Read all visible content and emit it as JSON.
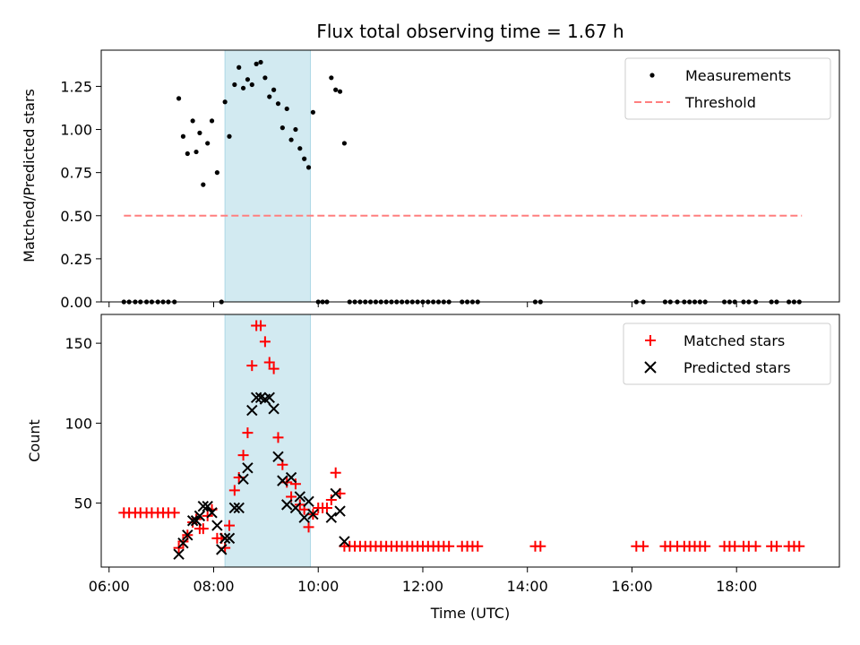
{
  "chart_data": [
    {
      "type": "scatter",
      "title": "Flux total observing time = 1.67 h",
      "xlabel": "",
      "ylabel": "Matched/Predicted stars",
      "ylim": [
        0,
        1.46
      ],
      "xlim": [
        "05:51",
        "19:58"
      ],
      "yticks": [
        "0.00",
        "0.25",
        "0.50",
        "0.75",
        "1.00",
        "1.25"
      ],
      "grid": false,
      "legend_position": "top-right",
      "shaded_span": [
        "08:13",
        "09:51"
      ],
      "series": [
        {
          "name": "Measurements",
          "kind": "points",
          "color": "#000000",
          "points": [
            [
              "06:17",
              0
            ],
            [
              "06:23",
              0
            ],
            [
              "06:30",
              0
            ],
            [
              "06:36",
              0
            ],
            [
              "06:43",
              0
            ],
            [
              "06:49",
              0
            ],
            [
              "06:56",
              0
            ],
            [
              "07:02",
              0
            ],
            [
              "07:08",
              0
            ],
            [
              "07:15",
              0
            ],
            [
              "07:20",
              1.18
            ],
            [
              "07:25",
              0.96
            ],
            [
              "07:30",
              0.86
            ],
            [
              "07:36",
              1.05
            ],
            [
              "07:40",
              0.87
            ],
            [
              "07:44",
              0.98
            ],
            [
              "07:48",
              0.68
            ],
            [
              "07:53",
              0.92
            ],
            [
              "07:58",
              1.05
            ],
            [
              "08:04",
              0.75
            ],
            [
              "08:09",
              0.0
            ],
            [
              "08:13",
              1.16
            ],
            [
              "08:18",
              0.96
            ],
            [
              "08:24",
              1.26
            ],
            [
              "08:29",
              1.36
            ],
            [
              "08:34",
              1.24
            ],
            [
              "08:39",
              1.29
            ],
            [
              "08:44",
              1.26
            ],
            [
              "08:49",
              1.38
            ],
            [
              "08:54",
              1.39
            ],
            [
              "08:59",
              1.3
            ],
            [
              "09:04",
              1.19
            ],
            [
              "09:09",
              1.23
            ],
            [
              "09:14",
              1.15
            ],
            [
              "09:19",
              1.01
            ],
            [
              "09:24",
              1.12
            ],
            [
              "09:29",
              0.94
            ],
            [
              "09:34",
              1.0
            ],
            [
              "09:39",
              0.89
            ],
            [
              "09:44",
              0.83
            ],
            [
              "09:49",
              0.78
            ],
            [
              "09:54",
              1.1
            ],
            [
              "10:00",
              0
            ],
            [
              "10:05",
              0
            ],
            [
              "10:10",
              0
            ],
            [
              "10:15",
              1.3
            ],
            [
              "10:20",
              1.23
            ],
            [
              "10:25",
              1.22
            ],
            [
              "10:30",
              0.92
            ],
            [
              "10:36",
              0
            ],
            [
              "10:42",
              0
            ],
            [
              "10:48",
              0
            ],
            [
              "10:54",
              0
            ],
            [
              "11:00",
              0
            ],
            [
              "11:06",
              0
            ],
            [
              "11:12",
              0
            ],
            [
              "11:18",
              0
            ],
            [
              "11:24",
              0
            ],
            [
              "11:30",
              0
            ],
            [
              "11:36",
              0
            ],
            [
              "11:42",
              0
            ],
            [
              "11:48",
              0
            ],
            [
              "11:54",
              0
            ],
            [
              "12:00",
              0
            ],
            [
              "12:06",
              0
            ],
            [
              "12:12",
              0
            ],
            [
              "12:18",
              0
            ],
            [
              "12:24",
              0
            ],
            [
              "12:30",
              0
            ],
            [
              "12:45",
              0
            ],
            [
              "12:51",
              0
            ],
            [
              "12:57",
              0
            ],
            [
              "13:03",
              0
            ],
            [
              "14:09",
              0
            ],
            [
              "14:15",
              0
            ],
            [
              "16:05",
              0
            ],
            [
              "16:13",
              0
            ],
            [
              "16:38",
              0
            ],
            [
              "16:44",
              0
            ],
            [
              "16:52",
              0
            ],
            [
              "17:00",
              0
            ],
            [
              "17:06",
              0
            ],
            [
              "17:12",
              0
            ],
            [
              "17:18",
              0
            ],
            [
              "17:24",
              0
            ],
            [
              "17:46",
              0
            ],
            [
              "17:52",
              0
            ],
            [
              "17:58",
              0
            ],
            [
              "18:08",
              0
            ],
            [
              "18:14",
              0
            ],
            [
              "18:22",
              0
            ],
            [
              "18:40",
              0
            ],
            [
              "18:46",
              0
            ],
            [
              "19:00",
              0
            ],
            [
              "19:06",
              0
            ],
            [
              "19:12",
              0
            ]
          ]
        },
        {
          "name": "Threshold",
          "kind": "dashed-line",
          "color": "#ff7f7f",
          "points": [
            [
              "06:17",
              0.5
            ],
            [
              "19:15",
              0.5
            ]
          ]
        }
      ]
    },
    {
      "type": "scatter",
      "title": "",
      "xlabel": "Time (UTC)",
      "ylabel": "Count",
      "ylim": [
        10,
        168
      ],
      "xlim": [
        "05:51",
        "19:58"
      ],
      "yticks": [
        "50",
        "100",
        "150"
      ],
      "xticks": [
        "06:00",
        "08:00",
        "10:00",
        "12:00",
        "14:00",
        "16:00",
        "18:00"
      ],
      "grid": false,
      "legend_position": "top-right",
      "shaded_span": [
        "08:13",
        "09:51"
      ],
      "series": [
        {
          "name": "Matched stars",
          "marker": "+",
          "color": "#ff0000",
          "points": [
            [
              "06:17",
              44
            ],
            [
              "06:23",
              44
            ],
            [
              "06:30",
              44
            ],
            [
              "06:36",
              44
            ],
            [
              "06:43",
              44
            ],
            [
              "06:49",
              44
            ],
            [
              "06:56",
              44
            ],
            [
              "07:02",
              44
            ],
            [
              "07:08",
              44
            ],
            [
              "07:15",
              44
            ],
            [
              "07:20",
              22
            ],
            [
              "07:25",
              26
            ],
            [
              "07:30",
              30
            ],
            [
              "07:36",
              38
            ],
            [
              "07:40",
              40
            ],
            [
              "07:44",
              34
            ],
            [
              "07:48",
              34
            ],
            [
              "07:53",
              42
            ],
            [
              "07:58",
              46
            ],
            [
              "08:04",
              28
            ],
            [
              "08:09",
              28
            ],
            [
              "08:13",
              22
            ],
            [
              "08:18",
              36
            ],
            [
              "08:24",
              58
            ],
            [
              "08:29",
              66
            ],
            [
              "08:34",
              80
            ],
            [
              "08:39",
              94
            ],
            [
              "08:44",
              136
            ],
            [
              "08:49",
              161
            ],
            [
              "08:54",
              161
            ],
            [
              "08:59",
              151
            ],
            [
              "09:04",
              138
            ],
            [
              "09:09",
              134
            ],
            [
              "09:14",
              91
            ],
            [
              "09:19",
              74
            ],
            [
              "09:24",
              63
            ],
            [
              "09:29",
              54
            ],
            [
              "09:34",
              62
            ],
            [
              "09:39",
              49
            ],
            [
              "09:44",
              46
            ],
            [
              "09:49",
              35
            ],
            [
              "09:54",
              43
            ],
            [
              "10:00",
              47
            ],
            [
              "10:05",
              47
            ],
            [
              "10:10",
              47
            ],
            [
              "10:15",
              52
            ],
            [
              "10:20",
              69
            ],
            [
              "10:25",
              56
            ],
            [
              "10:30",
              23
            ],
            [
              "10:36",
              23
            ],
            [
              "10:42",
              23
            ],
            [
              "10:48",
              23
            ],
            [
              "10:54",
              23
            ],
            [
              "11:00",
              23
            ],
            [
              "11:06",
              23
            ],
            [
              "11:12",
              23
            ],
            [
              "11:18",
              23
            ],
            [
              "11:24",
              23
            ],
            [
              "11:30",
              23
            ],
            [
              "11:36",
              23
            ],
            [
              "11:42",
              23
            ],
            [
              "11:48",
              23
            ],
            [
              "11:54",
              23
            ],
            [
              "12:00",
              23
            ],
            [
              "12:06",
              23
            ],
            [
              "12:12",
              23
            ],
            [
              "12:18",
              23
            ],
            [
              "12:24",
              23
            ],
            [
              "12:30",
              23
            ],
            [
              "12:45",
              23
            ],
            [
              "12:51",
              23
            ],
            [
              "12:57",
              23
            ],
            [
              "13:03",
              23
            ],
            [
              "14:09",
              23
            ],
            [
              "14:15",
              23
            ],
            [
              "16:05",
              23
            ],
            [
              "16:13",
              23
            ],
            [
              "16:38",
              23
            ],
            [
              "16:44",
              23
            ],
            [
              "16:52",
              23
            ],
            [
              "17:00",
              23
            ],
            [
              "17:06",
              23
            ],
            [
              "17:12",
              23
            ],
            [
              "17:18",
              23
            ],
            [
              "17:24",
              23
            ],
            [
              "17:46",
              23
            ],
            [
              "17:52",
              23
            ],
            [
              "17:58",
              23
            ],
            [
              "18:08",
              23
            ],
            [
              "18:14",
              23
            ],
            [
              "18:22",
              23
            ],
            [
              "18:40",
              23
            ],
            [
              "18:46",
              23
            ],
            [
              "19:00",
              23
            ],
            [
              "19:06",
              23
            ],
            [
              "19:12",
              23
            ]
          ]
        },
        {
          "name": "Predicted stars",
          "marker": "x",
          "color": "#000000",
          "points": [
            [
              "07:20",
              18
            ],
            [
              "07:25",
              25
            ],
            [
              "07:30",
              30
            ],
            [
              "07:36",
              39
            ],
            [
              "07:40",
              39
            ],
            [
              "07:44",
              42
            ],
            [
              "07:48",
              48
            ],
            [
              "07:53",
              48
            ],
            [
              "07:58",
              44
            ],
            [
              "08:04",
              36
            ],
            [
              "08:09",
              21
            ],
            [
              "08:13",
              28
            ],
            [
              "08:18",
              28
            ],
            [
              "08:24",
              47
            ],
            [
              "08:29",
              47
            ],
            [
              "08:34",
              65
            ],
            [
              "08:39",
              72
            ],
            [
              "08:44",
              108
            ],
            [
              "08:49",
              116
            ],
            [
              "08:54",
              116
            ],
            [
              "08:59",
              115
            ],
            [
              "09:04",
              116
            ],
            [
              "09:09",
              109
            ],
            [
              "09:14",
              79
            ],
            [
              "09:19",
              64
            ],
            [
              "09:24",
              49
            ],
            [
              "09:29",
              66
            ],
            [
              "09:34",
              47
            ],
            [
              "09:39",
              54
            ],
            [
              "09:44",
              41
            ],
            [
              "09:49",
              51
            ],
            [
              "09:54",
              43
            ],
            [
              "10:15",
              41
            ],
            [
              "10:20",
              56
            ],
            [
              "10:25",
              45
            ],
            [
              "10:30",
              26
            ]
          ]
        }
      ]
    }
  ]
}
